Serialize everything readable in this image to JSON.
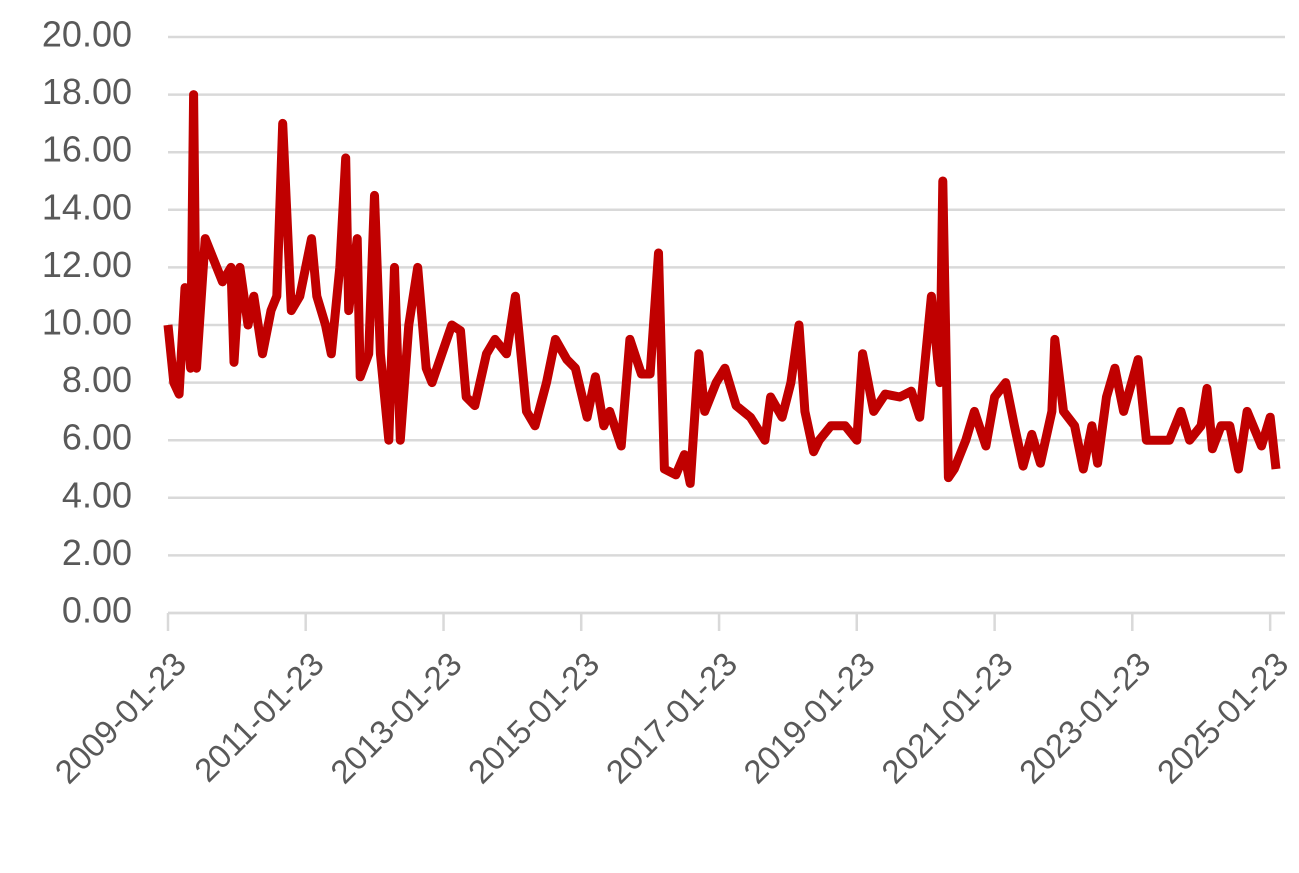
{
  "chart_data": {
    "type": "line",
    "color": "#c00000",
    "grid": true,
    "x": [
      "2009-01-23",
      "2009-02-23",
      "2009-03-23",
      "2009-04-23",
      "2009-05-23",
      "2009-06-08",
      "2009-06-23",
      "2009-08-08",
      "2009-11-08",
      "2009-12-23",
      "2010-01-08",
      "2010-02-08",
      "2010-03-23",
      "2010-04-23",
      "2010-06-08",
      "2010-07-23",
      "2010-08-23",
      "2010-09-23",
      "2010-11-08",
      "2010-12-23",
      "2011-02-23",
      "2011-03-23",
      "2011-05-08",
      "2011-06-08",
      "2011-07-23",
      "2011-08-23",
      "2011-09-08",
      "2011-10-23",
      "2011-11-08",
      "2011-12-23",
      "2012-01-23",
      "2012-02-23",
      "2012-04-08",
      "2012-05-08",
      "2012-06-08",
      "2012-07-23",
      "2012-09-08",
      "2012-10-23",
      "2012-11-23",
      "2013-03-08",
      "2013-04-23",
      "2013-05-23",
      "2013-07-08",
      "2013-09-08",
      "2013-10-23",
      "2013-12-23",
      "2014-02-08",
      "2014-04-08",
      "2014-05-23",
      "2014-07-23",
      "2014-09-08",
      "2014-11-08",
      "2014-12-23",
      "2015-02-23",
      "2015-04-08",
      "2015-05-23",
      "2015-06-23",
      "2015-08-23",
      "2015-10-08",
      "2015-12-08",
      "2016-01-23",
      "2016-03-08",
      "2016-04-08",
      "2016-06-08",
      "2016-07-23",
      "2016-08-23",
      "2016-10-08",
      "2016-11-08",
      "2017-01-08",
      "2017-02-23",
      "2017-04-23",
      "2017-07-08",
      "2017-09-23",
      "2017-10-23",
      "2017-12-23",
      "2018-02-08",
      "2018-03-23",
      "2018-04-23",
      "2018-06-08",
      "2018-07-08",
      "2018-09-08",
      "2018-11-23",
      "2019-01-23",
      "2019-02-23",
      "2019-04-23",
      "2019-06-23",
      "2019-09-08",
      "2019-11-08",
      "2019-12-23",
      "2020-02-23",
      "2020-04-08",
      "2020-04-23",
      "2020-05-23",
      "2020-06-23",
      "2020-08-23",
      "2020-10-08",
      "2020-12-08",
      "2021-01-23",
      "2021-03-23",
      "2021-05-08",
      "2021-06-23",
      "2021-08-08",
      "2021-09-23",
      "2021-11-23",
      "2021-12-08",
      "2022-01-23",
      "2022-03-23",
      "2022-05-08",
      "2022-06-23",
      "2022-07-23",
      "2022-09-08",
      "2022-10-23",
      "2022-12-08",
      "2023-02-23",
      "2023-04-08",
      "2023-05-23",
      "2023-08-08",
      "2023-10-08",
      "2023-11-23",
      "2024-01-23",
      "2024-02-23",
      "2024-03-23",
      "2024-05-08",
      "2024-06-23",
      "2024-08-08",
      "2024-09-23",
      "2024-12-08",
      "2025-01-23",
      "2025-02-23"
    ],
    "values": [
      10,
      8,
      7.6,
      11.3,
      8.5,
      18,
      8.5,
      13,
      11.5,
      12,
      8.7,
      12,
      10,
      11,
      9,
      10.5,
      11,
      17,
      10.5,
      11,
      13,
      11,
      10,
      9,
      12,
      15.8,
      10.5,
      13,
      8.2,
      9,
      14.5,
      9,
      6,
      12,
      6,
      10,
      12,
      8.5,
      8,
      10,
      9.8,
      7.5,
      7.2,
      9,
      9.5,
      9,
      11,
      7,
      6.5,
      8,
      9.5,
      8.8,
      8.5,
      6.8,
      8.2,
      6.5,
      7,
      5.8,
      9.5,
      8.3,
      8.3,
      12.5,
      5,
      4.8,
      5.5,
      4.5,
      9,
      7,
      8,
      8.5,
      7.2,
      6.8,
      6,
      7.5,
      6.8,
      8,
      10,
      7,
      5.6,
      6,
      6.5,
      6.5,
      6,
      9,
      7,
      7.6,
      7.5,
      7.7,
      6.8,
      11,
      8,
      15,
      4.7,
      5,
      6,
      7,
      5.8,
      7.5,
      8,
      6.5,
      5.1,
      6.2,
      5.2,
      7,
      9.5,
      7,
      6.5,
      5,
      6.5,
      5.2,
      7.5,
      8.5,
      7,
      8.8,
      6,
      6,
      6,
      7,
      6,
      6.5,
      7.8,
      5.7,
      6.5,
      6.5,
      5,
      7,
      5.8,
      6.8,
      5
    ],
    "xlim": [
      "2009-01-23",
      "2025-02-23"
    ],
    "xticks": [
      "2009-01-23",
      "2011-01-23",
      "2013-01-23",
      "2015-01-23",
      "2017-01-23",
      "2019-01-23",
      "2021-01-23",
      "2023-01-23",
      "2025-01-23"
    ],
    "ylim": [
      0,
      20
    ],
    "yticks": [
      {
        "value": 0,
        "label": "0.00"
      },
      {
        "value": 2,
        "label": "2.00"
      },
      {
        "value": 4,
        "label": "4.00"
      },
      {
        "value": 6,
        "label": "6.00"
      },
      {
        "value": 8,
        "label": "8.00"
      },
      {
        "value": 10,
        "label": "10.00"
      },
      {
        "value": 12,
        "label": "12.00"
      },
      {
        "value": 14,
        "label": "14.00"
      },
      {
        "value": 16,
        "label": "16.00"
      },
      {
        "value": 18,
        "label": "18.00"
      },
      {
        "value": 20,
        "label": "20.00"
      }
    ]
  }
}
